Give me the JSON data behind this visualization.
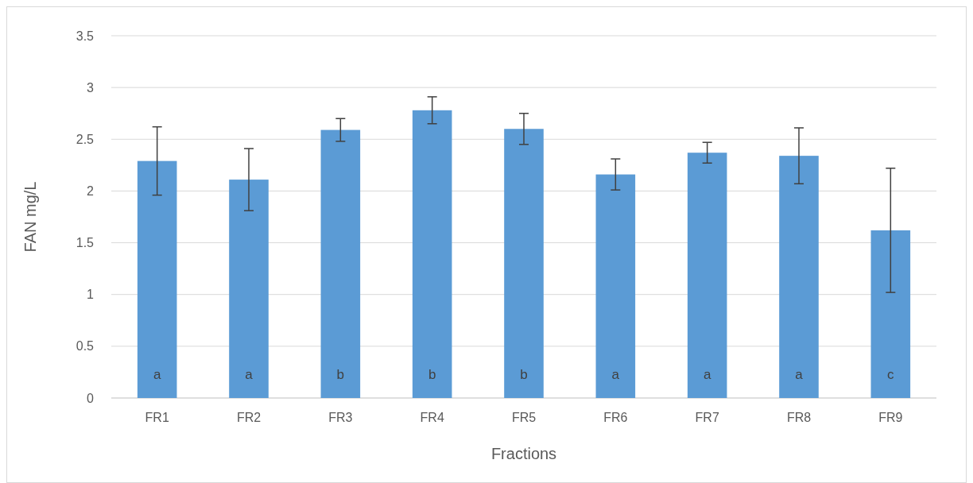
{
  "chart_data": {
    "type": "bar",
    "xlabel": "Fractions",
    "ylabel": "FAN mg/L",
    "categories": [
      "FR1",
      "FR2",
      "FR3",
      "FR4",
      "FR5",
      "FR6",
      "FR7",
      "FR8",
      "FR9"
    ],
    "values": [
      2.29,
      2.11,
      2.59,
      2.78,
      2.6,
      2.16,
      2.37,
      2.34,
      1.62
    ],
    "errors": [
      0.33,
      0.3,
      0.11,
      0.13,
      0.15,
      0.15,
      0.1,
      0.27,
      0.6
    ],
    "color": "#5b9bd5",
    "ylim": [
      0,
      3.5
    ],
    "yticks": [
      0,
      {
        "value": 0.5,
        "label": "0.5"
      },
      1,
      {
        "value": 1.5,
        "label": "1.5"
      },
      2,
      {
        "value": 2.5,
        "label": "2.5"
      },
      3,
      {
        "value": 3.5,
        "label": "3.5"
      }
    ],
    "grid": "y",
    "annotations": [
      "a",
      "a",
      "b",
      "b",
      "b",
      "a",
      "a",
      "a",
      "c"
    ]
  }
}
